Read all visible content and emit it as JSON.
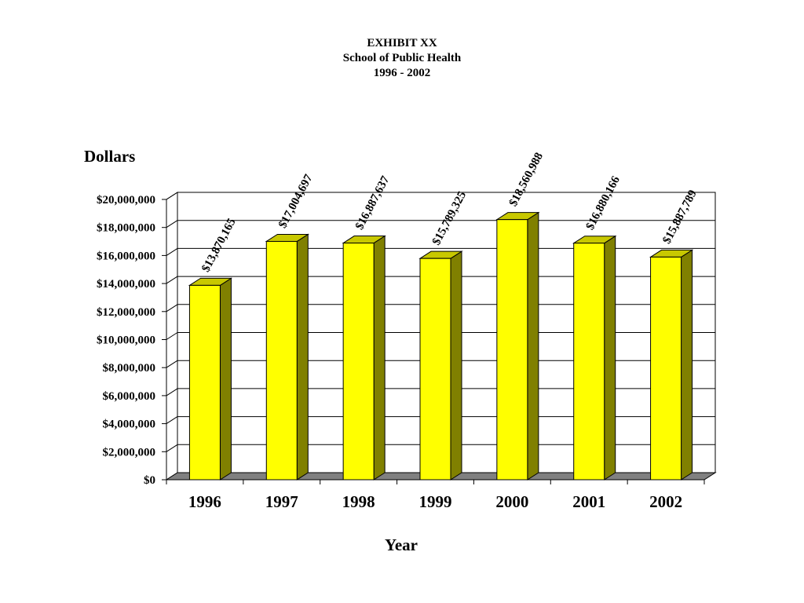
{
  "chart_data": {
    "type": "bar",
    "title": "EXHIBIT XX",
    "subtitle": "School of Public Health",
    "subtitle2": "1996 - 2002",
    "ylabel": "Dollars",
    "xlabel": "Year",
    "categories": [
      "1996",
      "1997",
      "1998",
      "1999",
      "2000",
      "2001",
      "2002"
    ],
    "values": [
      13870165,
      17004697,
      16887637,
      15789325,
      18560988,
      16880166,
      15887789
    ],
    "data_labels": [
      "$13,870,165",
      "$17,004,697",
      "$16,887,637",
      "$15,789,325",
      "$18,560,988",
      "$16,880,166",
      "$15,887,789"
    ],
    "ylim": [
      0,
      20000000
    ],
    "yticks": [
      0,
      2000000,
      4000000,
      6000000,
      8000000,
      10000000,
      12000000,
      14000000,
      16000000,
      18000000,
      20000000
    ],
    "ytick_labels": [
      "$0",
      "$2,000,000",
      "$4,000,000",
      "$6,000,000",
      "$8,000,000",
      "$10,000,000",
      "$12,000,000",
      "$14,000,000",
      "$16,000,000",
      "$18,000,000",
      "$20,000,000"
    ],
    "grid": true,
    "three_d": true,
    "colors": {
      "bar_front": "#ffff00",
      "bar_top": "#c8c800",
      "bar_side": "#808000",
      "floor": "#808080"
    }
  }
}
